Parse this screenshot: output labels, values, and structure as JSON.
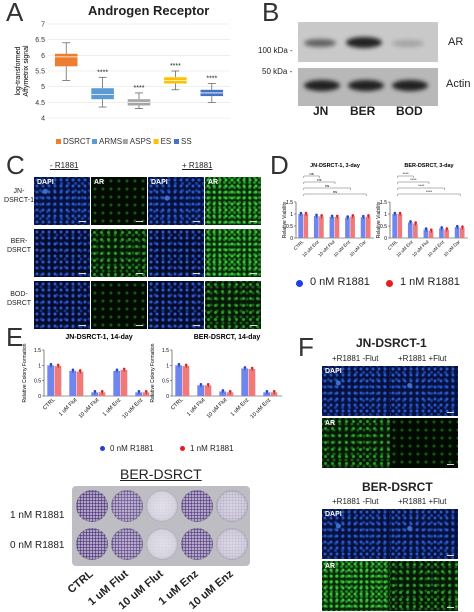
{
  "panels": {
    "A": {
      "letter": "A",
      "title": "Androgen Receptor",
      "ylabel_line1": "log-transformed",
      "ylabel_line2": "Affymetrix signal",
      "chart_data": {
        "type": "box",
        "title": "Androgen Receptor",
        "ylabel": "log-transformed Affymetrix signal",
        "ylim": [
          4,
          7
        ],
        "yticks": [
          "4",
          "4.5",
          "5",
          "5.5",
          "6",
          "6.5",
          "7"
        ],
        "categories": [
          "DSRCT",
          "ARMS",
          "ASPS",
          "ES",
          "SS"
        ],
        "colors": [
          "#ed7d31",
          "#5b9bd5",
          "#a5a5a5",
          "#ffc000",
          "#4472c4"
        ],
        "boxes": [
          {
            "name": "DSRCT",
            "q1": 5.65,
            "median": 5.95,
            "q3": 6.05,
            "whisker_low": 5.2,
            "whisker_high": 6.4,
            "sig": ""
          },
          {
            "name": "ARMS",
            "q1": 4.6,
            "median": 4.75,
            "q3": 4.95,
            "whisker_low": 4.35,
            "whisker_high": 5.3,
            "sig": "****"
          },
          {
            "name": "ASPS",
            "q1": 4.4,
            "median": 4.5,
            "q3": 4.6,
            "whisker_low": 4.3,
            "whisker_high": 4.8,
            "sig": "****"
          },
          {
            "name": "ES",
            "q1": 5.1,
            "median": 5.2,
            "q3": 5.3,
            "whisker_low": 4.9,
            "whisker_high": 5.5,
            "sig": "****"
          },
          {
            "name": "SS",
            "q1": 4.7,
            "median": 4.8,
            "q3": 4.9,
            "whisker_low": 4.5,
            "whisker_high": 5.1,
            "sig": "****"
          }
        ],
        "legend": [
          "DSRCT",
          "ARMS",
          "ASPS",
          "ES",
          "SS"
        ]
      }
    },
    "B": {
      "letter": "B",
      "marker_100": "100 kDa -",
      "marker_50": "50 kDa -",
      "lanes": [
        "JN",
        "BER",
        "BOD"
      ],
      "bands": [
        "AR",
        "Actin"
      ]
    },
    "C": {
      "letter": "C",
      "col_minus": "- R1881",
      "col_plus": "+ R1881",
      "rows": [
        "JN-\nDSRCT-1",
        "BER-\nDSRCT",
        "BOD-\nDSRCT"
      ],
      "dapi": "DAPI",
      "ar": "AR"
    },
    "D": {
      "letter": "D",
      "charts": [
        {
          "title": "JN-DSRCT-1, 3-day",
          "ylabel": "Relative Viability",
          "ylim": [
            0,
            1.5
          ],
          "yticks": [
            "0",
            "0.5",
            "1",
            "1.5"
          ],
          "categories": [
            "CTRL",
            "10 uM Enz",
            "10 uM Flut",
            "10 uM Enz",
            "10 uM Dar"
          ],
          "series": [
            {
              "name": "0 nM R1881",
              "values": [
                1.0,
                0.92,
                0.88,
                0.85,
                0.87
              ]
            },
            {
              "name": "1 nM R1881",
              "values": [
                1.0,
                0.9,
                0.88,
                0.9,
                0.9
              ]
            }
          ],
          "sig": [
            "ns",
            "ns",
            "ns",
            "ns",
            "ns"
          ]
        },
        {
          "title": "BER-DSRCT, 3-day",
          "ylabel": "Relative Viability",
          "ylim": [
            0,
            1.5
          ],
          "yticks": [
            "0",
            "0.5",
            "1",
            "1.5"
          ],
          "categories": [
            "CTRL",
            "10 uM Enz",
            "10 uM Flut",
            "10 uM Enz",
            "10 uM Dar"
          ],
          "series": [
            {
              "name": "0 nM R1881",
              "values": [
                1.0,
                0.65,
                0.35,
                0.4,
                0.45
              ]
            },
            {
              "name": "1 nM R1881",
              "values": [
                1.0,
                0.6,
                0.3,
                0.35,
                0.43
              ]
            }
          ],
          "sig": [
            "****",
            "****",
            "****",
            "****",
            "****"
          ]
        }
      ],
      "legend": [
        "0 nM R1881",
        "1 nM R1881"
      ],
      "legend_colors": [
        "#1f3fe0",
        "#e81c1c"
      ]
    },
    "E": {
      "letter": "E",
      "charts": [
        {
          "title": "JN-DSRCT-1, 14-day",
          "ylabel": "Relative Colony Formation",
          "ylim": [
            0,
            1.5
          ],
          "categories": [
            "CTRL",
            "1 uM Flut",
            "10 uM Flut",
            "1 uM Enz",
            "10 uM Enz"
          ],
          "series": [
            {
              "name": "0 nM R1881",
              "values": [
                1.0,
                0.82,
                0.12,
                0.82,
                0.12
              ]
            },
            {
              "name": "1 nM R1881",
              "values": [
                0.98,
                0.8,
                0.12,
                0.85,
                0.12
              ]
            }
          ]
        },
        {
          "title": "BER-DSRCT, 14-day",
          "ylabel": "Relative Colony Formation",
          "ylim": [
            0,
            1.5
          ],
          "categories": [
            "CTRL",
            "1 uM Flut",
            "10 uM Flut",
            "1 uM Enz",
            "10 uM Enz"
          ],
          "series": [
            {
              "name": "0 nM R1881",
              "values": [
                1.0,
                0.35,
                0.15,
                0.9,
                0.12
              ]
            },
            {
              "name": "1 nM R1881",
              "values": [
                0.98,
                0.35,
                0.12,
                0.88,
                0.12
              ]
            }
          ]
        }
      ],
      "legend": [
        "0 nM R1881",
        "1 nM R1881"
      ],
      "legend_colors": [
        "#1f3fe0",
        "#e81c1c"
      ],
      "plate_title": "BER-DSRCT",
      "plate_rows": [
        "1 nM R1881",
        "0 nM R1881"
      ],
      "plate_cols": [
        "CTRL",
        "1 uM Flut",
        "10 uM Flut",
        "1 uM Enz",
        "10 uM Enz"
      ]
    },
    "F": {
      "letter": "F",
      "title1": "JN-DSRCT-1",
      "title2": "BER-DSRCT",
      "cond_minus": "+R1881 -Flut",
      "cond_plus": "+R1881 +Flut",
      "dapi": "DAPI",
      "ar": "AR"
    }
  }
}
